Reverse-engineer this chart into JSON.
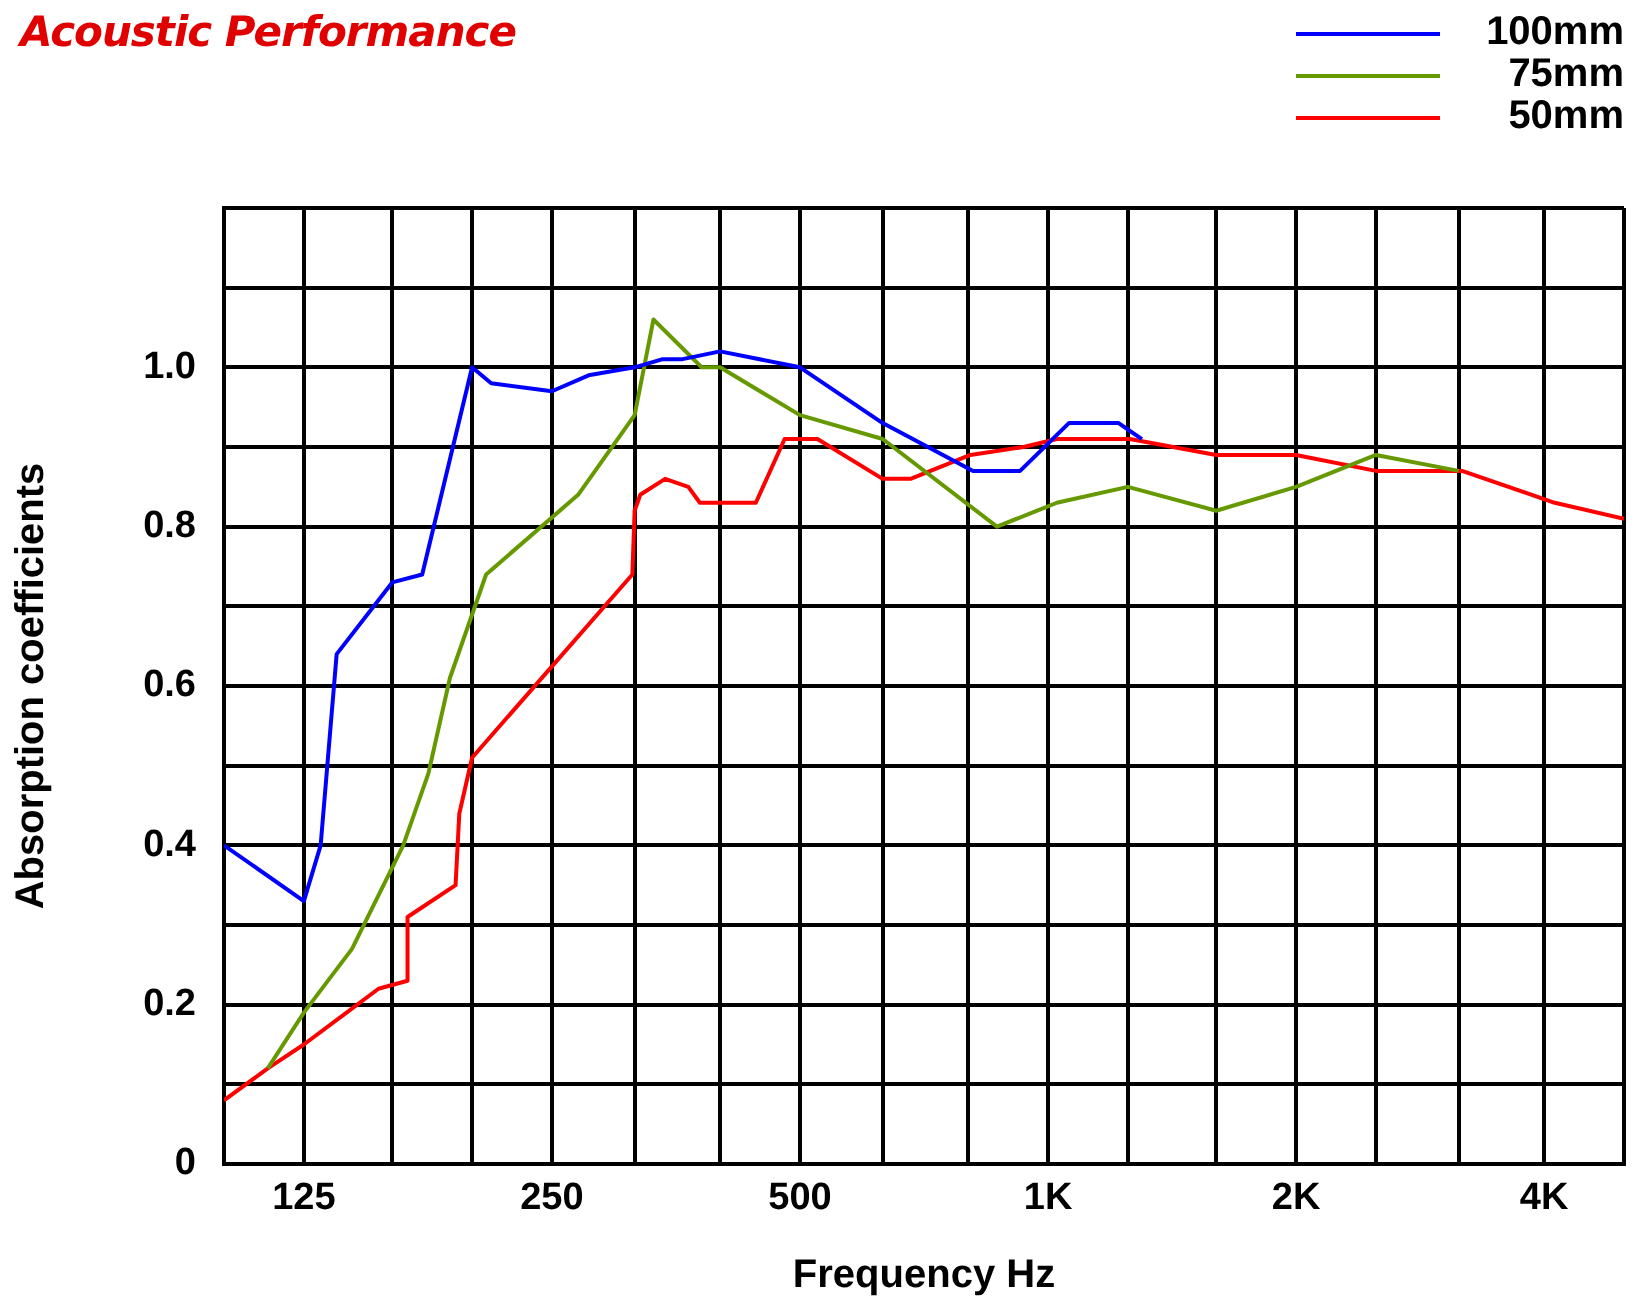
{
  "chart_data": {
    "type": "line",
    "title": "Acoustic Performance",
    "xlabel": "Frequency Hz",
    "ylabel": "Absorption coefficients",
    "log": "x",
    "xlim": [
      100,
      5000
    ],
    "ylim": [
      0,
      1.2
    ],
    "xticks": [
      {
        "value": 100,
        "label": null
      },
      125,
      {
        "value": 160,
        "label": null
      },
      {
        "value": 200,
        "label": null
      },
      250,
      {
        "value": 315,
        "label": null
      },
      {
        "value": 400,
        "label": null
      },
      500,
      {
        "value": 630,
        "label": null
      },
      {
        "value": 800,
        "label": null
      },
      {
        "value": 1000,
        "label": "1K"
      },
      {
        "value": 1250,
        "label": null
      },
      {
        "value": 1600,
        "label": null
      },
      {
        "value": 2000,
        "label": "2K"
      },
      {
        "value": 2500,
        "label": null
      },
      {
        "value": 3150,
        "label": null
      },
      {
        "value": 4000,
        "label": "4K"
      },
      {
        "value": 5000,
        "label": null
      }
    ],
    "yticks": [
      0,
      {
        "value": 0.1,
        "label": null
      },
      0.2,
      {
        "value": 0.3,
        "label": null
      },
      0.4,
      {
        "value": 0.5,
        "label": null
      },
      0.6,
      {
        "value": 0.7,
        "label": null
      },
      0.8,
      {
        "value": 0.9,
        "label": null
      },
      {
        "value": 1,
        "label": "1.0"
      },
      {
        "value": 1.1,
        "label": null
      },
      {
        "value": 1.2,
        "label": null
      }
    ],
    "grid": true,
    "legend": "top right",
    "marker": "none",
    "line_style": "solid",
    "series": [
      {
        "name": "100mm",
        "color": "#0000ff",
        "x": [
          100,
          125,
          131,
          137,
          160,
          174,
          200,
          211,
          250,
          277,
          315,
          340,
          359,
          400,
          500,
          630,
          811,
          925,
          1060,
          1218,
          1300
        ],
        "values": [
          0.4,
          0.33,
          0.4,
          0.64,
          0.73,
          0.74,
          1.0,
          0.98,
          0.97,
          0.99,
          1.0,
          1.01,
          1.01,
          1.02,
          1.0,
          0.93,
          0.87,
          0.87,
          0.93,
          0.93,
          0.91
        ]
      },
      {
        "name": "75mm",
        "color": "#669900",
        "x": [
          113,
          125,
          143,
          165,
          177,
          188,
          208,
          269,
          315,
          332,
          380,
          400,
          500,
          630,
          867,
          1025,
          1250,
          1600,
          2000,
          2500,
          3150
        ],
        "values": [
          0.12,
          0.19,
          0.27,
          0.4,
          0.49,
          0.61,
          0.74,
          0.84,
          0.94,
          1.06,
          1.0,
          1.0,
          0.94,
          0.91,
          0.8,
          0.83,
          0.85,
          0.82,
          0.85,
          0.89,
          0.87
        ]
      },
      {
        "name": "50mm",
        "color": "#ff0000",
        "x": [
          100,
          113,
          125,
          154,
          167,
          167,
          191,
          193,
          194,
          200,
          313,
          315,
          320,
          343,
          366,
          378,
          409,
          442,
          479,
          525,
          630,
          681,
          805,
          934,
          1025,
          1257,
          1600,
          2000,
          2500,
          3180,
          4120,
          5000
        ],
        "values": [
          0.08,
          0.12,
          0.15,
          0.22,
          0.23,
          0.31,
          0.35,
          0.44,
          0.45,
          0.51,
          0.74,
          0.82,
          0.84,
          0.86,
          0.85,
          0.83,
          0.83,
          0.83,
          0.91,
          0.91,
          0.86,
          0.86,
          0.89,
          0.9,
          0.91,
          0.91,
          0.89,
          0.89,
          0.87,
          0.87,
          0.83,
          0.81
        ]
      }
    ]
  }
}
